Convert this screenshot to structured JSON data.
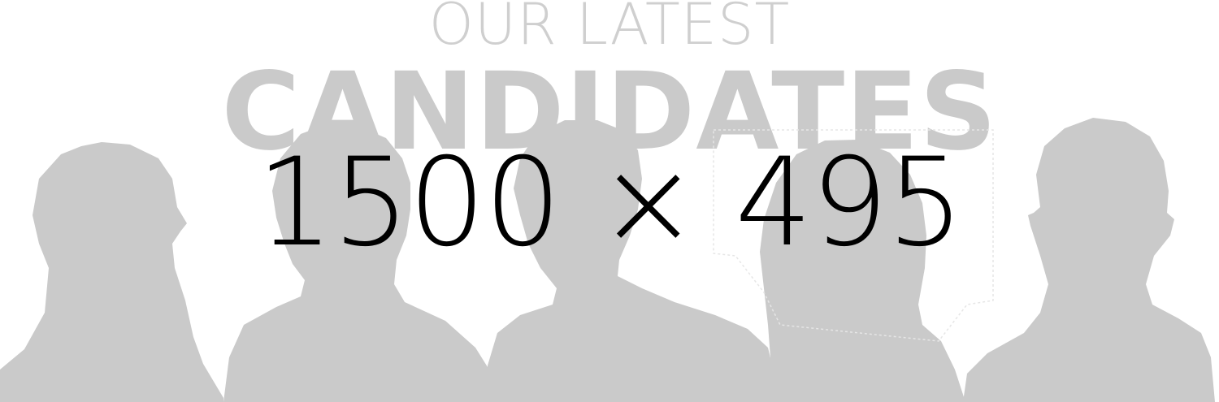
{
  "banner": {
    "heading_small": "OUR LATEST",
    "heading_large": "CANDIDATES",
    "dimensions_label": "1500 × 495"
  },
  "colors": {
    "background": "#ffffff",
    "silhouette": "#cacaca",
    "heading_small": "#cfcfcf",
    "heading_large": "#cacaca",
    "dimensions_text": "#000000"
  },
  "icons": {
    "silhouettes": [
      "person-silhouette-icon",
      "person-silhouette-icon",
      "person-silhouette-icon",
      "person-silhouette-icon",
      "person-silhouette-icon"
    ],
    "speech_bubble": "speech-bubble-icon"
  }
}
